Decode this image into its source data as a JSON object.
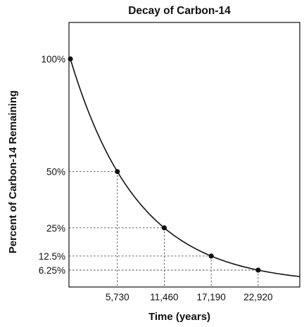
{
  "chart_data": {
    "type": "line",
    "title": "Decay of Carbon-14",
    "xlabel": "Time (years)",
    "ylabel": "Percent of Carbon-14 Remaining",
    "x_ticks": [
      "5,730",
      "11,460",
      "17,190",
      "22,920"
    ],
    "y_ticks": [
      "100%",
      "50%",
      "25%",
      "12.5%",
      "6.25%"
    ],
    "xlim": [
      0,
      28000
    ],
    "ylim": [
      0,
      100
    ],
    "grid": false,
    "series": [
      {
        "points": [
          {
            "x": 0,
            "y": 100
          },
          {
            "x": 5730,
            "y": 50
          },
          {
            "x": 11460,
            "y": 25
          },
          {
            "x": 17190,
            "y": 12.5
          },
          {
            "x": 22920,
            "y": 6.25
          }
        ],
        "curve_end_x": 28000
      }
    ]
  }
}
